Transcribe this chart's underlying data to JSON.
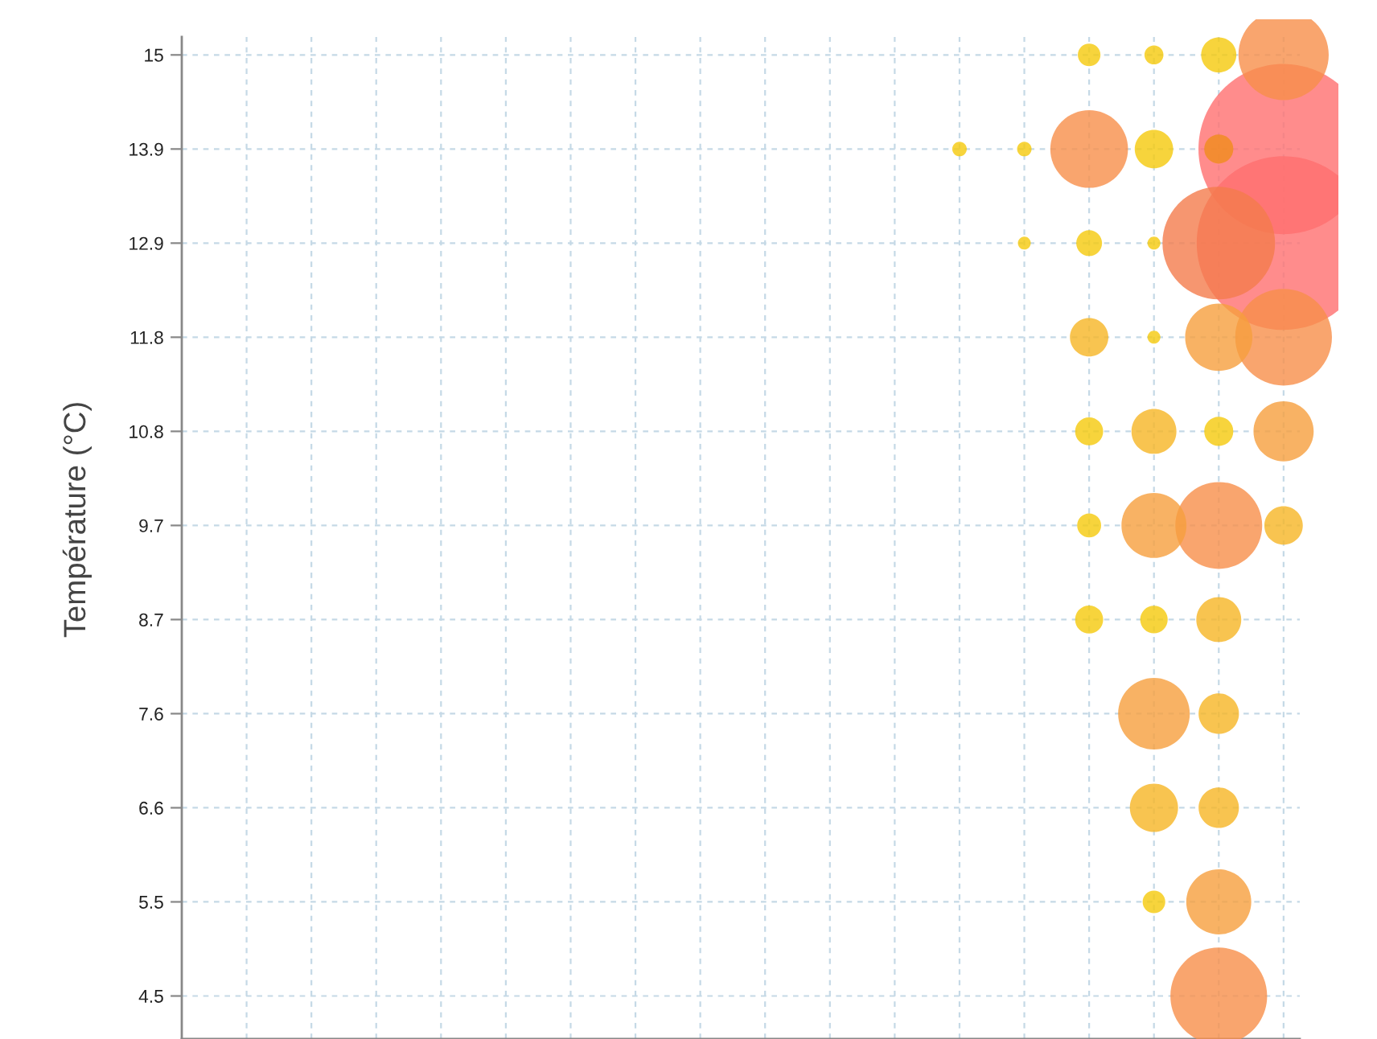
{
  "chart_data": {
    "type": "bubble",
    "ylabel": "Température (°C)",
    "categories": [
      null,
      null,
      null,
      null,
      null,
      null,
      null,
      null,
      null,
      null,
      null,
      null,
      null,
      null,
      null,
      null,
      null
    ],
    "ylim": [
      4.02,
      15.2
    ],
    "yticks": [
      4.5,
      {
        "value": 5.55,
        "label": "5.5"
      },
      6.6,
      {
        "value": 7.65,
        "label": "7.6"
      },
      8.7,
      {
        "value": 9.75,
        "label": "9.7"
      },
      10.8,
      {
        "value": 11.85,
        "label": "11.8"
      },
      12.9,
      {
        "value": 13.95,
        "label": "13.9"
      },
      15
    ],
    "grid": true,
    "series": [
      {
        "values": [
          null,
          null,
          null,
          null,
          null,
          null,
          null,
          null,
          null,
          null,
          null,
          null,
          null,
          15,
          15,
          15,
          15
        ],
        "sizes": [
          null,
          null,
          null,
          null,
          null,
          null,
          null,
          null,
          null,
          null,
          null,
          null,
          null,
          0.017,
          0.012,
          0.041,
          0.27
        ],
        "colors": [
          null,
          null,
          null,
          null,
          null,
          null,
          null,
          null,
          null,
          null,
          null,
          null,
          null,
          "#f5c90b",
          "#f5c90b",
          "#f5c90b",
          "#f78e4a"
        ]
      },
      {
        "values": [
          null,
          null,
          null,
          null,
          null,
          null,
          null,
          null,
          null,
          null,
          null,
          13.95,
          13.95,
          13.95,
          13.95,
          13.95,
          13.95
        ],
        "sizes": [
          null,
          null,
          null,
          null,
          null,
          null,
          null,
          null,
          null,
          null,
          null,
          0.007,
          0.007,
          0.2,
          0.049,
          0.028,
          0.96
        ],
        "colors": [
          null,
          null,
          null,
          null,
          null,
          null,
          null,
          null,
          null,
          null,
          null,
          "#f5c90b",
          "#f5c90b",
          "#f78e4a",
          "#f5c90b",
          "#f08c1b",
          "#ff6f6f"
        ]
      },
      {
        "values": [
          null,
          null,
          null,
          null,
          null,
          null,
          null,
          null,
          null,
          null,
          null,
          null,
          12.9,
          12.9,
          12.9,
          12.9,
          12.9
        ],
        "sizes": [
          null,
          null,
          null,
          null,
          null,
          null,
          null,
          null,
          null,
          null,
          null,
          null,
          0.0055,
          0.022,
          0.0055,
          0.42,
          1
        ],
        "colors": [
          null,
          null,
          null,
          null,
          null,
          null,
          null,
          null,
          null,
          null,
          null,
          null,
          "#f5c90b",
          "#f5c90b",
          "#f5c90b",
          "#f47c4c",
          "#ff6f6f"
        ]
      },
      {
        "values": [
          null,
          null,
          null,
          null,
          null,
          null,
          null,
          null,
          null,
          null,
          null,
          null,
          null,
          11.85,
          11.85,
          11.85,
          11.85
        ],
        "sizes": [
          null,
          null,
          null,
          null,
          null,
          null,
          null,
          null,
          null,
          null,
          null,
          null,
          null,
          0.049,
          0.0055,
          0.15,
          0.31
        ],
        "colors": [
          null,
          null,
          null,
          null,
          null,
          null,
          null,
          null,
          null,
          null,
          null,
          null,
          null,
          "#f6b524",
          "#f5c90b",
          "#f69f3d",
          "#f78e4a"
        ]
      },
      {
        "values": [
          null,
          null,
          null,
          null,
          null,
          null,
          null,
          null,
          null,
          null,
          null,
          null,
          null,
          10.8,
          10.8,
          10.8,
          10.8
        ],
        "sizes": [
          null,
          null,
          null,
          null,
          null,
          null,
          null,
          null,
          null,
          null,
          null,
          null,
          null,
          0.026,
          0.067,
          0.028,
          0.12
        ],
        "colors": [
          null,
          null,
          null,
          null,
          null,
          null,
          null,
          null,
          null,
          null,
          null,
          null,
          null,
          "#f5c90b",
          "#f6b524",
          "#f5c90b",
          "#f69f3d"
        ]
      },
      {
        "values": [
          null,
          null,
          null,
          null,
          null,
          null,
          null,
          null,
          null,
          null,
          null,
          null,
          null,
          9.75,
          9.75,
          9.75,
          9.75
        ],
        "sizes": [
          null,
          null,
          null,
          null,
          null,
          null,
          null,
          null,
          null,
          null,
          null,
          null,
          null,
          0.019,
          0.14,
          0.25,
          0.049
        ],
        "colors": [
          null,
          null,
          null,
          null,
          null,
          null,
          null,
          null,
          null,
          null,
          null,
          null,
          null,
          "#f5c90b",
          "#f69f3d",
          "#f78e4a",
          "#f6b524"
        ]
      },
      {
        "values": [
          null,
          null,
          null,
          null,
          null,
          null,
          null,
          null,
          null,
          null,
          null,
          null,
          null,
          8.7,
          8.7,
          8.7,
          null
        ],
        "sizes": [
          null,
          null,
          null,
          null,
          null,
          null,
          null,
          null,
          null,
          null,
          null,
          null,
          null,
          0.026,
          0.025,
          0.067,
          null
        ],
        "colors": [
          null,
          null,
          null,
          null,
          null,
          null,
          null,
          null,
          null,
          null,
          null,
          null,
          null,
          "#f5c90b",
          "#f5c90b",
          "#f6b524",
          null
        ]
      },
      {
        "values": [
          null,
          null,
          null,
          null,
          null,
          null,
          null,
          null,
          null,
          null,
          null,
          null,
          null,
          null,
          7.65,
          7.65,
          null
        ],
        "sizes": [
          null,
          null,
          null,
          null,
          null,
          null,
          null,
          null,
          null,
          null,
          null,
          null,
          null,
          null,
          0.17,
          0.054,
          null
        ],
        "colors": [
          null,
          null,
          null,
          null,
          null,
          null,
          null,
          null,
          null,
          null,
          null,
          null,
          null,
          null,
          "#f69f3d",
          "#f6b524",
          null
        ]
      },
      {
        "values": [
          null,
          null,
          null,
          null,
          null,
          null,
          null,
          null,
          null,
          null,
          null,
          null,
          null,
          null,
          6.6,
          6.6,
          null
        ],
        "sizes": [
          null,
          null,
          null,
          null,
          null,
          null,
          null,
          null,
          null,
          null,
          null,
          null,
          null,
          null,
          0.077,
          0.054,
          null
        ],
        "colors": [
          null,
          null,
          null,
          null,
          null,
          null,
          null,
          null,
          null,
          null,
          null,
          null,
          null,
          null,
          "#f6b524",
          "#f6b524",
          null
        ]
      },
      {
        "values": [
          null,
          null,
          null,
          null,
          null,
          null,
          null,
          null,
          null,
          null,
          null,
          null,
          null,
          null,
          5.55,
          5.55,
          null
        ],
        "sizes": [
          null,
          null,
          null,
          null,
          null,
          null,
          null,
          null,
          null,
          null,
          null,
          null,
          null,
          null,
          0.017,
          0.14,
          null
        ],
        "colors": [
          null,
          null,
          null,
          null,
          null,
          null,
          null,
          null,
          null,
          null,
          null,
          null,
          null,
          null,
          "#f5c90b",
          "#f69f3d",
          null
        ]
      },
      {
        "values": [
          null,
          null,
          null,
          null,
          null,
          null,
          null,
          null,
          null,
          null,
          null,
          null,
          null,
          null,
          null,
          4.5,
          null
        ],
        "sizes": [
          null,
          null,
          null,
          null,
          null,
          null,
          null,
          null,
          null,
          null,
          null,
          null,
          null,
          null,
          null,
          0.31,
          null
        ],
        "colors": [
          null,
          null,
          null,
          null,
          null,
          null,
          null,
          null,
          null,
          null,
          null,
          null,
          null,
          null,
          null,
          "#f78e4a",
          null
        ]
      }
    ]
  }
}
